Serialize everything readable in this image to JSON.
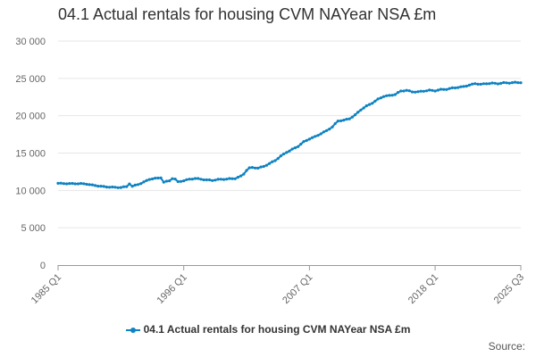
{
  "chart_data": {
    "type": "line",
    "title": "04.1 Actual rentals for housing CVM NAYear NSA £m",
    "xlabel": "",
    "ylabel": "",
    "ylim": [
      0,
      30000
    ],
    "yticks": [
      0,
      5000,
      10000,
      15000,
      20000,
      25000,
      30000
    ],
    "ytick_labels": [
      "0",
      "5 000",
      "10 000",
      "15 000",
      "20 000",
      "25 000",
      "30 000"
    ],
    "xticks": [
      {
        "label": "1985 Q1",
        "index": 0
      },
      {
        "label": "1996 Q1",
        "index": 44
      },
      {
        "label": "2007 Q1",
        "index": 88
      },
      {
        "label": "2018 Q1",
        "index": 132
      },
      {
        "label": "2025 Q3",
        "index": 162
      }
    ],
    "x_start": "1985 Q1",
    "x_end": "2025 Q3",
    "grid": true,
    "legend_position": "bottom-center",
    "series": [
      {
        "name": "04.1 Actual rentals for housing CVM NAYear NSA £m",
        "color": "#0f82c2",
        "anchors": [
          [
            0,
            10950
          ],
          [
            4,
            10900
          ],
          [
            8,
            10900
          ],
          [
            10,
            10850
          ],
          [
            12,
            10700
          ],
          [
            14,
            10600
          ],
          [
            16,
            10500
          ],
          [
            18,
            10450
          ],
          [
            20,
            10400
          ],
          [
            22,
            10400
          ],
          [
            24,
            10500
          ],
          [
            25,
            10900
          ],
          [
            26,
            10550
          ],
          [
            28,
            10800
          ],
          [
            30,
            11100
          ],
          [
            32,
            11500
          ],
          [
            34,
            11600
          ],
          [
            36,
            11700
          ],
          [
            37,
            11100
          ],
          [
            39,
            11300
          ],
          [
            40,
            11600
          ],
          [
            41,
            11500
          ],
          [
            42,
            11150
          ],
          [
            44,
            11300
          ],
          [
            46,
            11500
          ],
          [
            48,
            11600
          ],
          [
            50,
            11500
          ],
          [
            52,
            11400
          ],
          [
            54,
            11350
          ],
          [
            56,
            11450
          ],
          [
            58,
            11500
          ],
          [
            60,
            11550
          ],
          [
            62,
            11600
          ],
          [
            64,
            11900
          ],
          [
            65,
            12200
          ],
          [
            66,
            12700
          ],
          [
            67,
            13000
          ],
          [
            68,
            13050
          ],
          [
            70,
            13000
          ],
          [
            72,
            13200
          ],
          [
            74,
            13600
          ],
          [
            76,
            14000
          ],
          [
            78,
            14600
          ],
          [
            80,
            15100
          ],
          [
            82,
            15500
          ],
          [
            84,
            15900
          ],
          [
            86,
            16500
          ],
          [
            88,
            16900
          ],
          [
            90,
            17200
          ],
          [
            92,
            17600
          ],
          [
            94,
            18000
          ],
          [
            96,
            18500
          ],
          [
            98,
            19300
          ],
          [
            100,
            19400
          ],
          [
            102,
            19600
          ],
          [
            104,
            20100
          ],
          [
            106,
            20800
          ],
          [
            108,
            21300
          ],
          [
            110,
            21700
          ],
          [
            112,
            22200
          ],
          [
            114,
            22600
          ],
          [
            116,
            22700
          ],
          [
            118,
            22850
          ],
          [
            120,
            23300
          ],
          [
            122,
            23400
          ],
          [
            124,
            23200
          ],
          [
            126,
            23200
          ],
          [
            128,
            23300
          ],
          [
            130,
            23400
          ],
          [
            132,
            23350
          ],
          [
            134,
            23500
          ],
          [
            136,
            23550
          ],
          [
            138,
            23700
          ],
          [
            140,
            23800
          ],
          [
            142,
            23900
          ],
          [
            144,
            24100
          ],
          [
            146,
            24300
          ],
          [
            148,
            24200
          ],
          [
            150,
            24300
          ],
          [
            152,
            24350
          ],
          [
            154,
            24300
          ],
          [
            156,
            24400
          ],
          [
            158,
            24400
          ],
          [
            160,
            24450
          ],
          [
            162,
            24450
          ]
        ]
      }
    ]
  },
  "legend": {
    "label": "04.1 Actual rentals for housing CVM NAYear NSA £m"
  },
  "footer": {
    "source": "Source:"
  },
  "colors": {
    "series": "#0f82c2",
    "grid": "#e6e6e6",
    "axis": "#999999",
    "tick_text": "#666666"
  }
}
